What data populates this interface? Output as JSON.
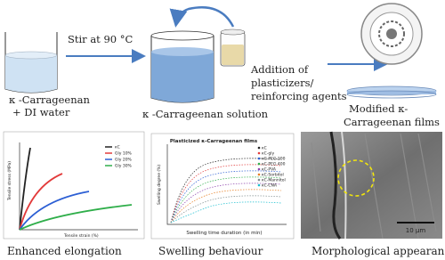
{
  "steps": {
    "start_label_1": "κ -Carrageenan",
    "start_label_2": "+ DI water",
    "stir": "Stir at 90 °C",
    "solution": "κ -Carrageenan solution",
    "addition_1": "Addition of",
    "addition_2": "plasticizers/",
    "addition_3": "reinforcing agents",
    "films_1": "Modified κ-",
    "films_2": "Carrageenan films"
  },
  "panels": {
    "tensile": {
      "y_label": "Tensile stress (MPa)",
      "x_label": "Tensile strain (%)",
      "legend": [
        "κC",
        "Gly 10%",
        "Gly 20%",
        "Gly 30%"
      ],
      "caption": "Enhanced elongation"
    },
    "swelling": {
      "title": "Plasticized κ-Carrageenan films",
      "y_label": "Swelling degree (%)",
      "x_label": "Swelling time duration (in min)",
      "legend": [
        "κC",
        "κC-gly",
        "κC-PEG 200",
        "κC-PEG 400",
        "κC-PVA",
        "κC-Sorbitol",
        "κC-Mannitol",
        "κC-CNA"
      ],
      "caption": "Swelling behaviour"
    },
    "sem": {
      "scale": "10 µm",
      "caption": "Morphological appearance"
    }
  }
}
